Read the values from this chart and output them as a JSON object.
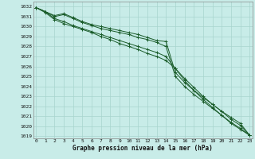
{
  "title": "Graphe pression niveau de la mer (hPa)",
  "xlabel_hours": [
    0,
    1,
    2,
    3,
    4,
    5,
    6,
    7,
    8,
    9,
    10,
    11,
    12,
    13,
    14,
    15,
    16,
    17,
    18,
    19,
    20,
    21,
    22,
    23
  ],
  "ylim": [
    1018.8,
    1032.5
  ],
  "yticks": [
    1019,
    1020,
    1021,
    1022,
    1023,
    1024,
    1025,
    1026,
    1027,
    1028,
    1029,
    1030,
    1031,
    1032
  ],
  "background_color": "#c8ece8",
  "grid_color": "#a8d4ce",
  "line_color": "#1a5c2a",
  "line1": [
    1031.9,
    1031.5,
    1031.1,
    1031.3,
    1030.9,
    1030.5,
    1030.2,
    1030.0,
    1029.8,
    1029.6,
    1029.4,
    1029.2,
    1028.9,
    1028.6,
    1028.5,
    1025.4,
    1024.4,
    1023.6,
    1022.9,
    1022.2,
    1021.5,
    1020.7,
    1020.1,
    1019.1
  ],
  "line2": [
    1031.9,
    1031.5,
    1031.0,
    1031.2,
    1030.8,
    1030.4,
    1030.1,
    1029.8,
    1029.6,
    1029.4,
    1029.2,
    1028.9,
    1028.7,
    1028.4,
    1028.0,
    1025.0,
    1024.0,
    1023.2,
    1022.5,
    1021.8,
    1021.1,
    1020.3,
    1019.7,
    1019.1
  ],
  "line3": [
    1031.9,
    1031.5,
    1030.8,
    1030.5,
    1030.1,
    1029.8,
    1029.5,
    1029.2,
    1028.9,
    1028.6,
    1028.3,
    1028.0,
    1027.7,
    1027.4,
    1027.0,
    1025.8,
    1024.6,
    1023.6,
    1022.7,
    1021.9,
    1021.1,
    1020.4,
    1019.8,
    1019.1
  ],
  "line4": [
    1031.9,
    1031.4,
    1030.7,
    1030.3,
    1030.0,
    1029.7,
    1029.4,
    1029.0,
    1028.7,
    1028.3,
    1028.0,
    1027.7,
    1027.3,
    1027.0,
    1026.6,
    1025.8,
    1024.8,
    1023.9,
    1023.0,
    1022.2,
    1021.5,
    1020.9,
    1020.3,
    1019.1
  ],
  "title_fontsize": 5.5,
  "tick_fontsize": 4.5,
  "linewidth": 0.7,
  "markersize": 2.5
}
